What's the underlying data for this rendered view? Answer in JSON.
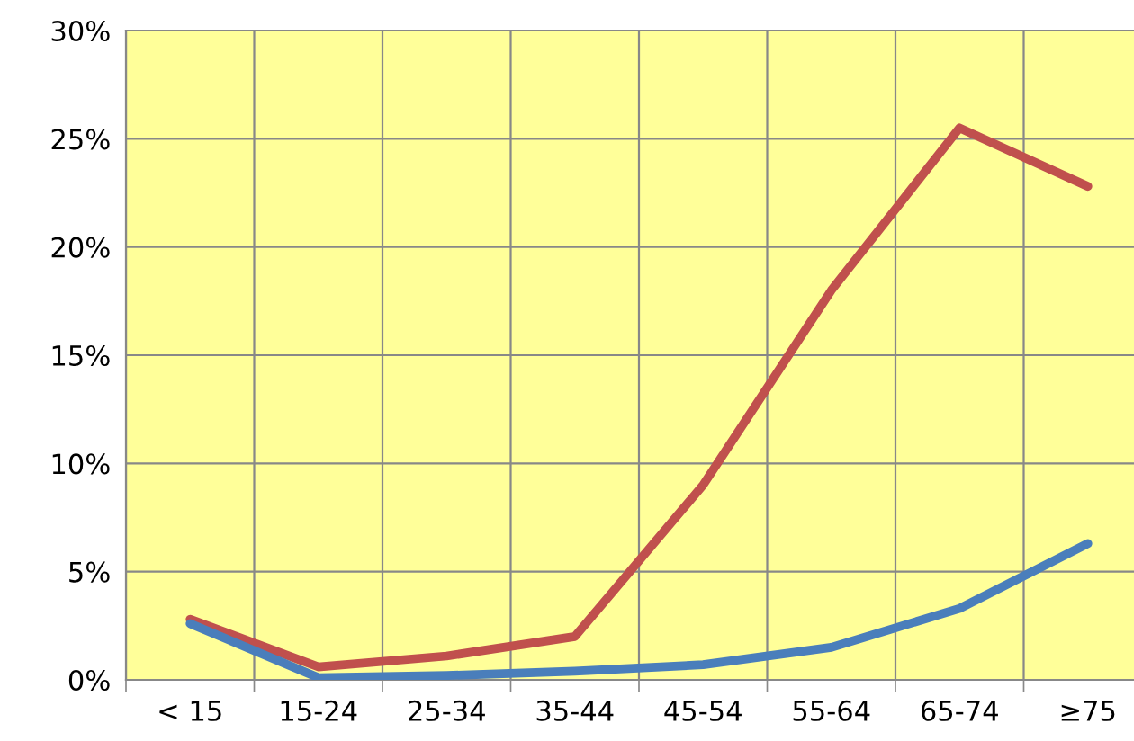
{
  "chart_data": {
    "type": "line",
    "categories": [
      "< 15",
      "15-24",
      "25-34",
      "35-44",
      "45-54",
      "55-64",
      "65-74",
      "≥75"
    ],
    "series": [
      {
        "color": "#c0504d",
        "values": [
          2.8,
          0.6,
          1.1,
          2.0,
          9.0,
          18.0,
          25.5,
          22.8
        ]
      },
      {
        "color": "#4a7ebb",
        "values": [
          2.6,
          0.1,
          0.2,
          0.4,
          0.7,
          1.5,
          3.3,
          6.3
        ]
      }
    ],
    "ylim": [
      0,
      30
    ],
    "yticks": [
      {
        "value": 0,
        "label": "0%"
      },
      {
        "value": 5,
        "label": "5%"
      },
      {
        "value": 10,
        "label": "10%"
      },
      {
        "value": 15,
        "label": "15%"
      },
      {
        "value": 20,
        "label": "20%"
      },
      {
        "value": 25,
        "label": "25%"
      },
      {
        "value": 30,
        "label": "30%"
      }
    ],
    "grid": true,
    "line_style": "solid",
    "marker": "none",
    "legend": false
  }
}
